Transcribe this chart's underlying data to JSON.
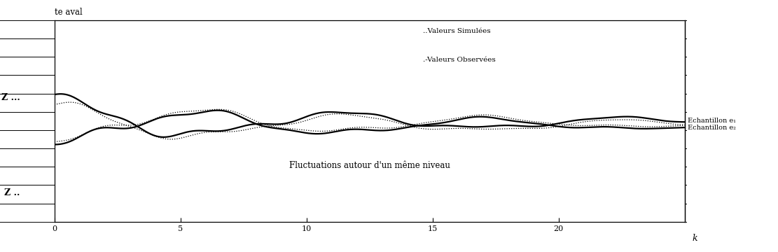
{
  "title_top": "te aval",
  "ylabel_top": "Z ...",
  "ylabel_bottom": "Z ..",
  "xlabel": "k",
  "xlim": [
    0,
    25
  ],
  "annotation": "Fluctuations autour d'un même niveau",
  "legend_simulated": "..Valeurs Simulées",
  "legend_observed": ".-Valeurs Observées",
  "label_e1": "Echantillon e₁",
  "label_e2": "Echantillon e₂",
  "xticks": [
    0,
    5,
    10,
    15,
    20
  ],
  "background_color": "#ffffff",
  "line_color": "#000000",
  "ylim_data": [
    0.3,
    1.0
  ],
  "e1_base": 0.7,
  "e2_base": 0.58
}
